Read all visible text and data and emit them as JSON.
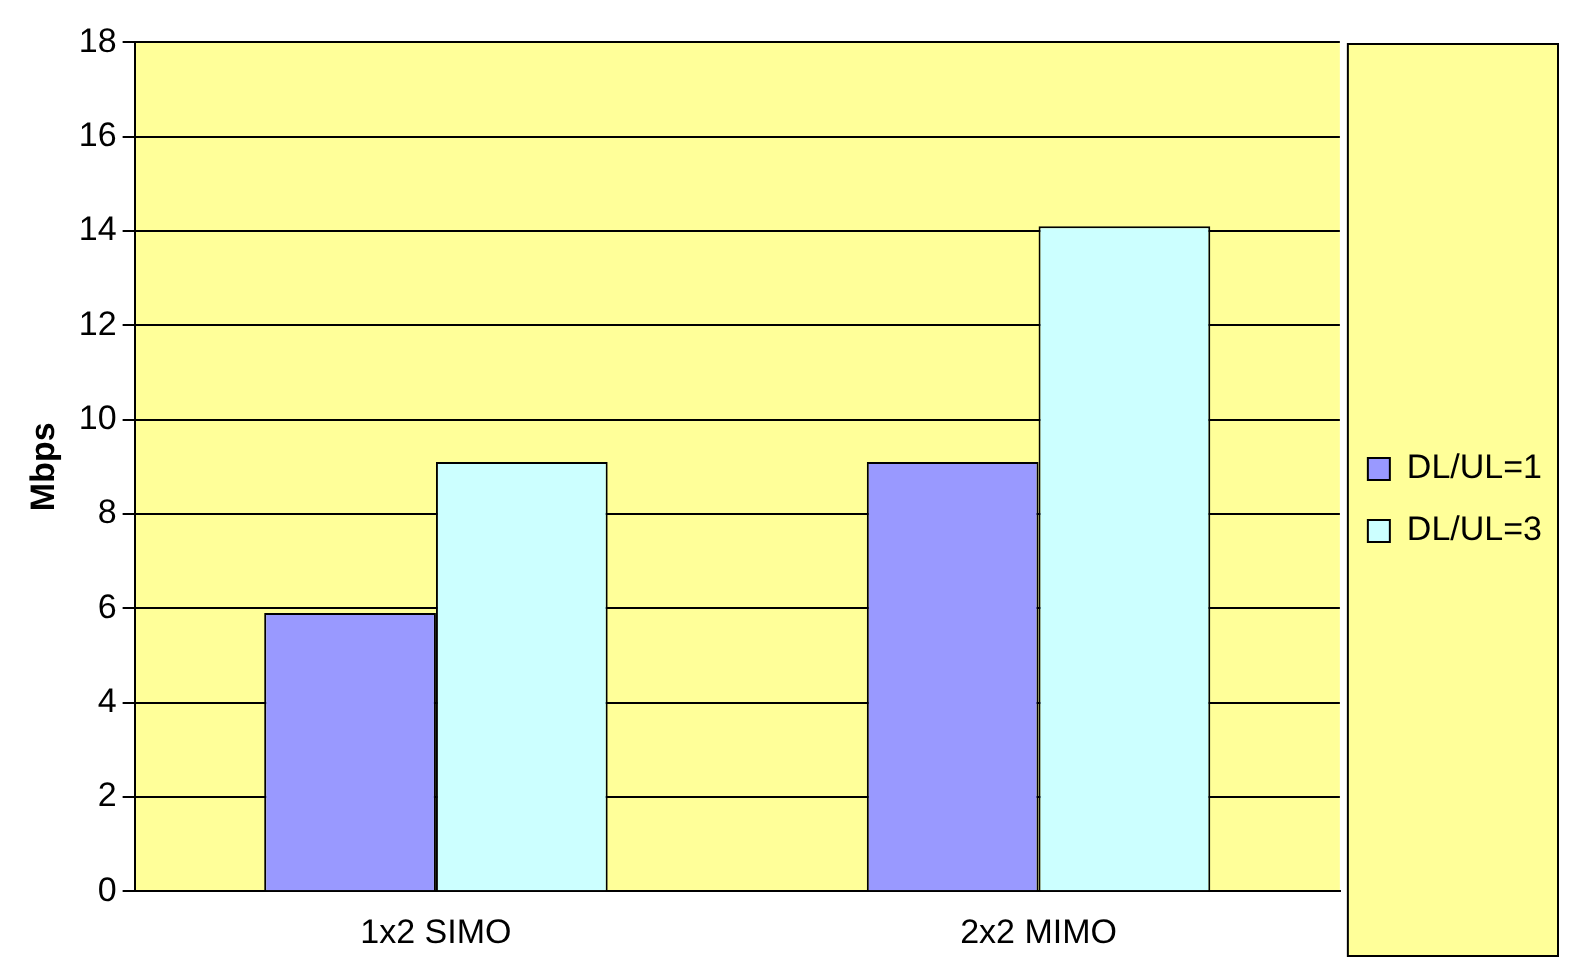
{
  "chart_data": {
    "type": "bar",
    "ylabel": "Mbps",
    "categories": [
      "1x2 SIMO",
      "2x2 MIMO"
    ],
    "series": [
      {
        "name": "DL/UL=1",
        "color": "#9999ff",
        "values": [
          5.9,
          9.1
        ]
      },
      {
        "name": "DL/UL=3",
        "color": "#ccffff",
        "values": [
          9.1,
          14.1
        ]
      }
    ],
    "ylim": [
      0,
      18
    ],
    "yticks": [
      0,
      2,
      4,
      6,
      8,
      10,
      12,
      14,
      16,
      18
    ],
    "grid": "y",
    "legend": "right"
  }
}
